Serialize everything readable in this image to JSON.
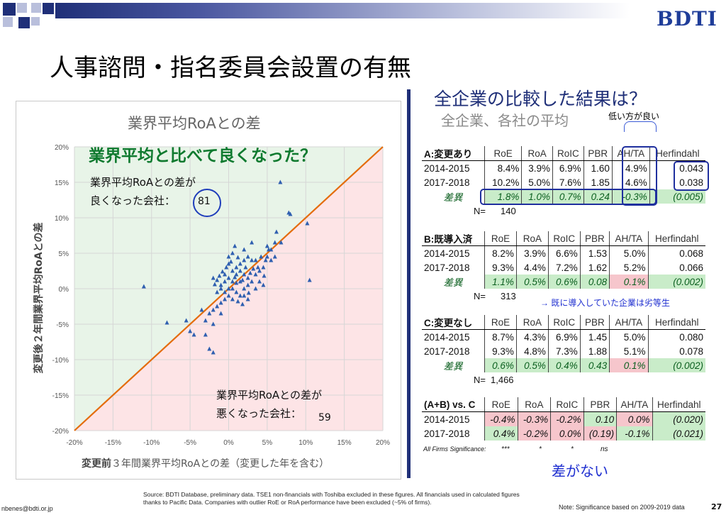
{
  "header": {
    "logo": "BDTI",
    "title": "人事諮問・指名委員会設置の有無"
  },
  "chart": {
    "title": "業界平均RoAとの差",
    "ylabel_bold": "変更後",
    "ylabel_rest": "２年間業界平均RoAとの差",
    "xlabel_bold": "変更前",
    "xlabel_rest": "３年間業界平均RoAとの差（変更した年を含む）",
    "annotation_green": "業界平均と比べて良くなった？",
    "better_line1": "業界平均RoAとの差が",
    "better_line2": "良くなった会社：",
    "better_count": "81",
    "worse_line1": "業界平均RoAとの差が",
    "worse_line2": "悪くなった会社：",
    "worse_count": "59",
    "colors": {
      "upper": "#e8f4e8",
      "lower": "#fde4e6",
      "diagonal": "#e46c0a",
      "points": "#2f5fb0"
    }
  },
  "chart_data": {
    "type": "scatter",
    "title": "業界平均RoAとの差",
    "xlabel": "変更前３年間業界平均RoAとの差（変更した年を含む）",
    "ylabel": "変更後２年間業界平均RoAとの差",
    "xlim": [
      -0.2,
      0.2
    ],
    "ylim": [
      -0.2,
      0.2
    ],
    "xticks": [
      "-20%",
      "-15%",
      "-10%",
      "-5%",
      "0%",
      "5%",
      "10%",
      "15%",
      "20%"
    ],
    "yticks": [
      "20%",
      "15%",
      "10%",
      "5%",
      "0%",
      "-5%",
      "-10%",
      "-15%",
      "-20%"
    ],
    "grid": true,
    "reference_line": "y = x",
    "points": [
      [
        0.067,
        0.15
      ],
      [
        0.078,
        0.107
      ],
      [
        0.08,
        0.105
      ],
      [
        0.102,
        0.092
      ],
      [
        0.105,
        0.012
      ],
      [
        0.068,
        0.065
      ],
      [
        0.06,
        0.065
      ],
      [
        0.055,
        0.055
      ],
      [
        0.05,
        0.06
      ],
      [
        0.042,
        0.045
      ],
      [
        0.03,
        0.065
      ],
      [
        0.05,
        0.045
      ],
      [
        0.055,
        0.04
      ],
      [
        0.045,
        0.03
      ],
      [
        0.035,
        0.04
      ],
      [
        0.025,
        0.045
      ],
      [
        0.02,
        0.04
      ],
      [
        0.015,
        0.035
      ],
      [
        0.01,
        0.03
      ],
      [
        0.005,
        0.05
      ],
      [
        0.0,
        0.045
      ],
      [
        0.0,
        0.035
      ],
      [
        0.005,
        0.025
      ],
      [
        0.01,
        0.02
      ],
      [
        0.015,
        0.025
      ],
      [
        0.02,
        0.02
      ],
      [
        0.025,
        0.015
      ],
      [
        0.03,
        0.01
      ],
      [
        0.035,
        0.02
      ],
      [
        0.04,
        0.025
      ],
      [
        0.045,
        0.005
      ],
      [
        0.035,
        0.0
      ],
      [
        0.025,
        0.005
      ],
      [
        0.02,
        0.0
      ],
      [
        0.015,
        0.01
      ],
      [
        0.01,
        0.008
      ],
      [
        0.005,
        0.01
      ],
      [
        0.0,
        0.015
      ],
      [
        -0.005,
        0.02
      ],
      [
        -0.005,
        0.01
      ],
      [
        -0.01,
        0.005
      ],
      [
        -0.01,
        0.0
      ],
      [
        -0.015,
        -0.005
      ],
      [
        -0.005,
        -0.005
      ],
      [
        0.0,
        0.0
      ],
      [
        0.005,
        0.0
      ],
      [
        0.01,
        -0.005
      ],
      [
        0.015,
        -0.01
      ],
      [
        0.02,
        -0.01
      ],
      [
        0.025,
        -0.015
      ],
      [
        0.005,
        -0.015
      ],
      [
        0.0,
        -0.01
      ],
      [
        -0.005,
        -0.015
      ],
      [
        -0.01,
        -0.02
      ],
      [
        -0.015,
        -0.025
      ],
      [
        -0.02,
        -0.03
      ],
      [
        -0.025,
        -0.035
      ],
      [
        -0.01,
        -0.035
      ],
      [
        -0.03,
        -0.045
      ],
      [
        -0.035,
        -0.03
      ],
      [
        -0.02,
        -0.05
      ],
      [
        -0.03,
        -0.065
      ],
      [
        -0.055,
        -0.045
      ],
      [
        -0.05,
        -0.06
      ],
      [
        -0.08,
        -0.048
      ],
      [
        -0.11,
        0.003
      ],
      [
        -0.025,
        -0.085
      ],
      [
        -0.02,
        -0.09
      ],
      [
        -0.045,
        -0.065
      ],
      [
        -0.02,
        0.015
      ],
      [
        -0.015,
        0.012
      ],
      [
        0.012,
        0.044
      ],
      [
        0.02,
        0.055
      ],
      [
        0.03,
        0.04
      ],
      [
        0.038,
        0.03
      ],
      [
        0.048,
        0.04
      ],
      [
        0.052,
        0.055
      ],
      [
        0.06,
        0.045
      ],
      [
        0.062,
        0.08
      ],
      [
        0.008,
        0.06
      ],
      [
        -0.003,
        0.03
      ],
      [
        0.003,
        0.038
      ],
      [
        0.018,
        0.012
      ],
      [
        0.022,
        0.03
      ],
      [
        0.028,
        0.022
      ],
      [
        0.032,
        0.028
      ],
      [
        0.04,
        0.01
      ],
      [
        0.046,
        0.018
      ],
      [
        -0.012,
        0.018
      ],
      [
        -0.008,
        0.024
      ],
      [
        0.012,
        -0.018
      ],
      [
        0.018,
        -0.022
      ],
      [
        0.026,
        -0.006
      ],
      [
        0.008,
        0.016
      ],
      [
        -0.018,
        0.006
      ]
    ]
  },
  "right": {
    "title": "全企業の比較した結果は？",
    "subtitle": "全企業、各社の平均",
    "low_note": "低い方が良い",
    "cols": [
      "RoE",
      "RoA",
      "RoIC",
      "PBR",
      "AH/TA",
      "Herfindahl"
    ],
    "tableA": {
      "label": "A:変更あり",
      "rows": [
        {
          "label": "2014-2015",
          "vals": [
            "8.4%",
            "3.9%",
            "6.9%",
            "1.60",
            "4.9%",
            "0.043"
          ]
        },
        {
          "label": "2017-2018",
          "vals": [
            "10.2%",
            "5.0%",
            "7.6%",
            "1.85",
            "4.6%",
            "0.038"
          ]
        }
      ],
      "diff_label": "差異",
      "diff": [
        "1.8%",
        "1.0%",
        "0.7%",
        "0.24",
        "-0.3%",
        "(0.005)"
      ],
      "n_label": "N=",
      "n": "140"
    },
    "tableB": {
      "label": "B:既導入済",
      "rows": [
        {
          "label": "2014-2015",
          "vals": [
            "8.2%",
            "3.9%",
            "6.6%",
            "1.53",
            "5.0%",
            "0.068"
          ]
        },
        {
          "label": "2017-2018",
          "vals": [
            "9.3%",
            "4.4%",
            "7.2%",
            "1.62",
            "5.2%",
            "0.066"
          ]
        }
      ],
      "diff_label": "差異",
      "diff": [
        "1.1%",
        "0.5%",
        "0.6%",
        "0.08",
        "0.1%",
        "(0.002)"
      ],
      "n_label": "N=",
      "n": "313"
    },
    "note_b": "→ 既に導入していた企業は劣等生",
    "tableC": {
      "label": "C:変更なし",
      "rows": [
        {
          "label": "2014-2015",
          "vals": [
            "8.7%",
            "4.3%",
            "6.9%",
            "1.45",
            "5.0%",
            "0.080"
          ]
        },
        {
          "label": "2017-2018",
          "vals": [
            "9.3%",
            "4.8%",
            "7.3%",
            "1.88",
            "5.1%",
            "0.078"
          ]
        }
      ],
      "diff_label": "差異",
      "diff": [
        "0.6%",
        "0.5%",
        "0.4%",
        "0.43",
        "0.1%",
        "(0.002)"
      ],
      "n_label": "N=",
      "n": "1,466"
    },
    "tableD": {
      "label": "(A+B) vs. C",
      "rows": [
        {
          "label": "2014-2015",
          "vals": [
            "-0.4%",
            "-0.3%",
            "-0.2%",
            "0.10",
            "0.0%",
            "(0.020)"
          ]
        },
        {
          "label": "2017-2018",
          "vals": [
            "0.4%",
            "-0.2%",
            "0.0%",
            "(0.19)",
            "-0.1%",
            "(0.021)"
          ]
        }
      ]
    },
    "sig_label": "All Firms Significance:",
    "sig_vals": [
      "***",
      "*",
      "*",
      "ns"
    ],
    "no_diff": "差がない"
  },
  "footer": {
    "source": "Source: BDTI Database, preliminary data. TSE1 non-financials with Toshiba excluded in these figures. All financials used in calculated figures thanks to Pacific Data. Companies with outlier RoE or RoA performance have been excluded (~5% of firms).",
    "email": "nbenes@bdti.or.jp",
    "sig_note": "Note: Significance based on 2009-2019 data",
    "page": "27"
  }
}
